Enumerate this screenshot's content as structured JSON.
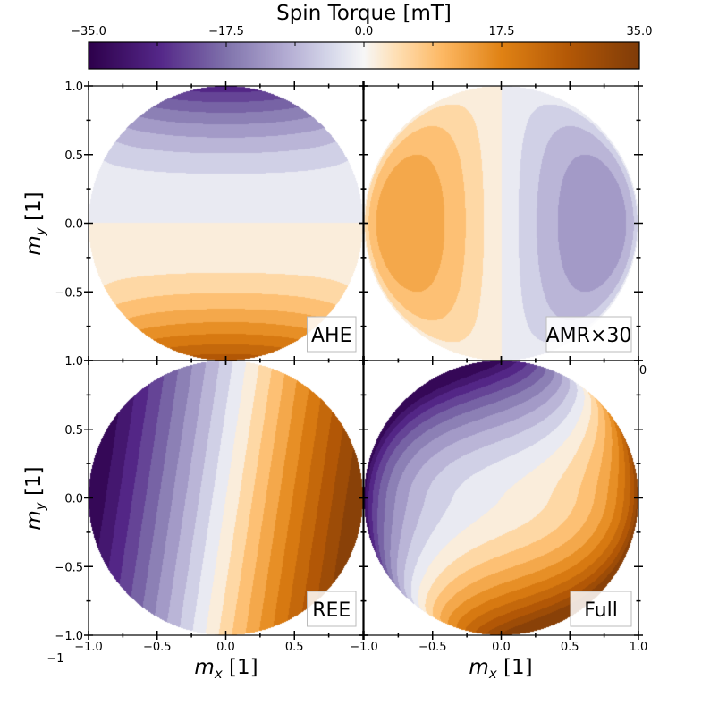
{
  "chart_data": {
    "type": "heatmap",
    "colorbar": {
      "label": "Spin Torque [mT]",
      "range": [
        -35.0,
        35.0
      ],
      "ticks": [
        "−35.0",
        "−17.5",
        "0.0",
        "17.5",
        "35.0"
      ],
      "colormap": "PuOr_r",
      "colors": [
        "#2d004b",
        "#542788",
        "#8073ac",
        "#b2abd2",
        "#d8daeb",
        "#f7f7f7",
        "#fee0b6",
        "#fdb863",
        "#e08214",
        "#b35806",
        "#7f3b08"
      ]
    },
    "xlim": [
      -1.0,
      1.0
    ],
    "ylim": [
      -1.0,
      1.0
    ],
    "xticks": [
      "−1.0",
      "−0.5",
      "0.0",
      "0.5",
      "1.0"
    ],
    "yticks": [
      "1.0",
      "0.5",
      "0.0",
      "−0.5",
      "−1.0"
    ],
    "xlabel": "m_x [1]",
    "ylabel": "m_y [1]",
    "stray_labels": [
      "−1",
      "0"
    ],
    "panels": [
      {
        "label": "AHE"
      },
      {
        "label": "AMR×30"
      },
      {
        "label": "REE"
      },
      {
        "label": "Full"
      }
    ]
  }
}
